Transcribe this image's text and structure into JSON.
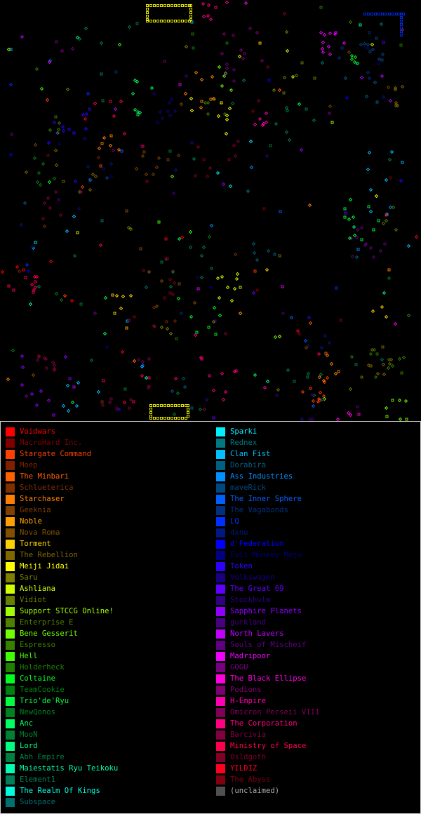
{
  "map": {
    "background": "#000000"
  },
  "legend": {
    "left_column": [
      {
        "label": "Voidwars",
        "color": "#ff0000",
        "bright": true
      },
      {
        "label": "MacroHard Inc.",
        "color": "#800000",
        "bright": false
      },
      {
        "label": "Stargate Command",
        "color": "#ff4000",
        "bright": true
      },
      {
        "label": "Moep",
        "color": "#802000",
        "bright": false
      },
      {
        "label": "The Minbari",
        "color": "#ff6000",
        "bright": true
      },
      {
        "label": "Schlueterica",
        "color": "#803000",
        "bright": false
      },
      {
        "label": "Starchaser",
        "color": "#ff8000",
        "bright": true
      },
      {
        "label": "Geeknia",
        "color": "#804000",
        "bright": false
      },
      {
        "label": "Noble",
        "color": "#ffa000",
        "bright": true
      },
      {
        "label": "Nova Roma",
        "color": "#805000",
        "bright": false
      },
      {
        "label": "Torment",
        "color": "#ffd000",
        "bright": true
      },
      {
        "label": "The Rebellion",
        "color": "#806800",
        "bright": false
      },
      {
        "label": "Meiji Jidai",
        "color": "#ffff00",
        "bright": true
      },
      {
        "label": "Saru",
        "color": "#808000",
        "bright": false
      },
      {
        "label": "Ashliana",
        "color": "#d0ff00",
        "bright": true
      },
      {
        "label": "Vidiot",
        "color": "#688000",
        "bright": false
      },
      {
        "label": "Support STCCG Online!",
        "color": "#a0ff00",
        "bright": true
      },
      {
        "label": "Enterprise E",
        "color": "#508000",
        "bright": false
      },
      {
        "label": "Bene Gesserit",
        "color": "#70ff00",
        "bright": true
      },
      {
        "label": "Espresso",
        "color": "#388000",
        "bright": false
      },
      {
        "label": "Hell",
        "color": "#40ff00",
        "bright": true
      },
      {
        "label": "Holderheck",
        "color": "#208000",
        "bright": false
      },
      {
        "label": "Coltaine",
        "color": "#00ff20",
        "bright": true
      },
      {
        "label": "TeamCookie",
        "color": "#008010",
        "bright": false
      },
      {
        "label": "Trio'de'Ryu",
        "color": "#00ff40",
        "bright": true
      },
      {
        "label": "NewQonos",
        "color": "#008020",
        "bright": false
      },
      {
        "label": "Anc",
        "color": "#00ff60",
        "bright": true
      },
      {
        "label": "MooN",
        "color": "#008030",
        "bright": false
      },
      {
        "label": "Lord",
        "color": "#00ff80",
        "bright": true
      },
      {
        "label": "Abh Empire",
        "color": "#008040",
        "bright": false
      },
      {
        "label": "Maiestatis Ryu Teikoku",
        "color": "#00ffb0",
        "bright": true
      },
      {
        "label": "Element1",
        "color": "#008058",
        "bright": false
      },
      {
        "label": "The Realm Of Kings",
        "color": "#00ffe0",
        "bright": true
      },
      {
        "label": "Subspace",
        "color": "#007070",
        "bright": false
      }
    ],
    "right_column": [
      {
        "label": "Sparki",
        "color": "#00f0ff",
        "bright": true
      },
      {
        "label": "Rednex",
        "color": "#007880",
        "bright": false
      },
      {
        "label": "Clan Fist",
        "color": "#00c0ff",
        "bright": true
      },
      {
        "label": "Dorabira",
        "color": "#006080",
        "bright": false
      },
      {
        "label": "Ass Industries",
        "color": "#0090ff",
        "bright": true
      },
      {
        "label": "maveRick",
        "color": "#004880",
        "bright": false
      },
      {
        "label": "The Inner Sphere",
        "color": "#0060ff",
        "bright": true
      },
      {
        "label": "The Vagabonds",
        "color": "#003080",
        "bright": false
      },
      {
        "label": "LQ",
        "color": "#0030ff",
        "bright": true
      },
      {
        "label": "dxno",
        "color": "#001880",
        "bright": false
      },
      {
        "label": "d'Federation",
        "color": "#0000ff",
        "bright": true
      },
      {
        "label": "Evil Monkey Mojo",
        "color": "#000080",
        "bright": false
      },
      {
        "label": "Token",
        "color": "#3000ff",
        "bright": true
      },
      {
        "label": "Volkswagen",
        "color": "#180080",
        "bright": false
      },
      {
        "label": "The Great 69",
        "color": "#6000ff",
        "bright": true
      },
      {
        "label": "Stockholm",
        "color": "#300080",
        "bright": false
      },
      {
        "label": "Sapphire Planets",
        "color": "#9000ff",
        "bright": true
      },
      {
        "label": "gurkland",
        "color": "#480080",
        "bright": false
      },
      {
        "label": "North Lavers",
        "color": "#c000ff",
        "bright": true
      },
      {
        "label": "Souls of Mischeif",
        "color": "#600080",
        "bright": false
      },
      {
        "label": "Madripoor",
        "color": "#f000ff",
        "bright": true
      },
      {
        "label": "GOGU",
        "color": "#780080",
        "bright": false
      },
      {
        "label": "The Black Ellipse",
        "color": "#ff00e0",
        "bright": true
      },
      {
        "label": "Podions",
        "color": "#800070",
        "bright": false
      },
      {
        "label": "H-Empire",
        "color": "#ff00b0",
        "bright": true
      },
      {
        "label": "Omicron Perseii VIII",
        "color": "#800058",
        "bright": false
      },
      {
        "label": "The Corporation",
        "color": "#ff0080",
        "bright": true
      },
      {
        "label": "Barcivia",
        "color": "#800040",
        "bright": false
      },
      {
        "label": "Ministry of Space",
        "color": "#ff0050",
        "bright": true
      },
      {
        "label": "Osldgoth",
        "color": "#800028",
        "bright": false
      },
      {
        "label": "YILDIZ",
        "color": "#ff0020",
        "bright": true
      },
      {
        "label": "The Abyss",
        "color": "#800010",
        "bright": false
      },
      {
        "label": "(unclaimed)",
        "color": "#505050",
        "bright": false,
        "text_color": "#aaaaaa"
      }
    ]
  }
}
